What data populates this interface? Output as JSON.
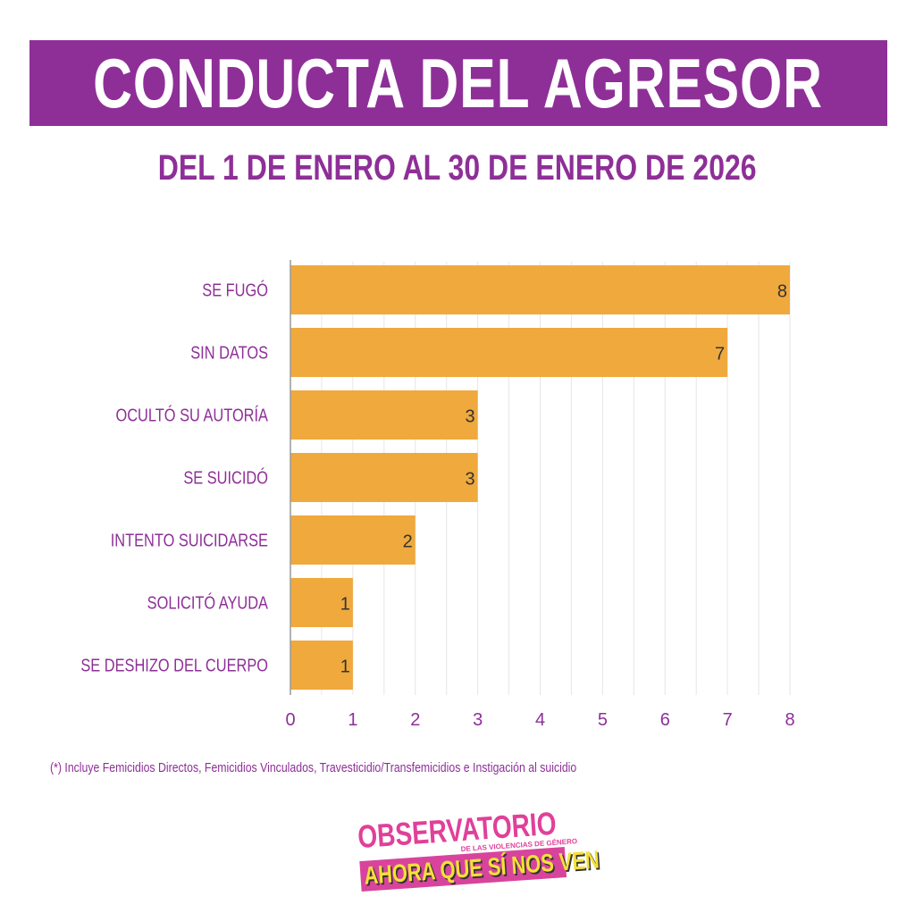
{
  "title": "CONDUCTA DEL AGRESOR",
  "subtitle": "DEL 1 DE ENERO AL 30 DE ENERO DE 2026",
  "footnote": "(*) Incluye Femicidios Directos, Femicidios Vinculados,  Travesticidio/Transfemicidios e Instigación al suicidio",
  "logo": {
    "line1": "OBSERVATORIO",
    "line2": "DE LAS VIOLENCIAS DE GÉNERO",
    "line3": "AHORA QUE SÍ NOS VEN"
  },
  "colors": {
    "primary": "#8e2f98",
    "bar": "#f0a93c",
    "grid": "#e6e6e6"
  },
  "chart_data": {
    "type": "bar",
    "orientation": "horizontal",
    "categories": [
      "SE FUGÓ",
      "SIN DATOS",
      "OCULTÓ SU AUTORÍA",
      "SE SUICIDÓ",
      "INTENTO SUICIDARSE",
      "SOLICITÓ AYUDA",
      "SE DESHIZO DEL CUERPO"
    ],
    "values": [
      8,
      7,
      3,
      3,
      2,
      1,
      1
    ],
    "xlim": [
      0,
      8
    ],
    "xticks": [
      "0",
      "1",
      "2",
      "3",
      "4",
      "5",
      "6",
      "7",
      "8"
    ],
    "grid": true,
    "data_labels": true
  }
}
